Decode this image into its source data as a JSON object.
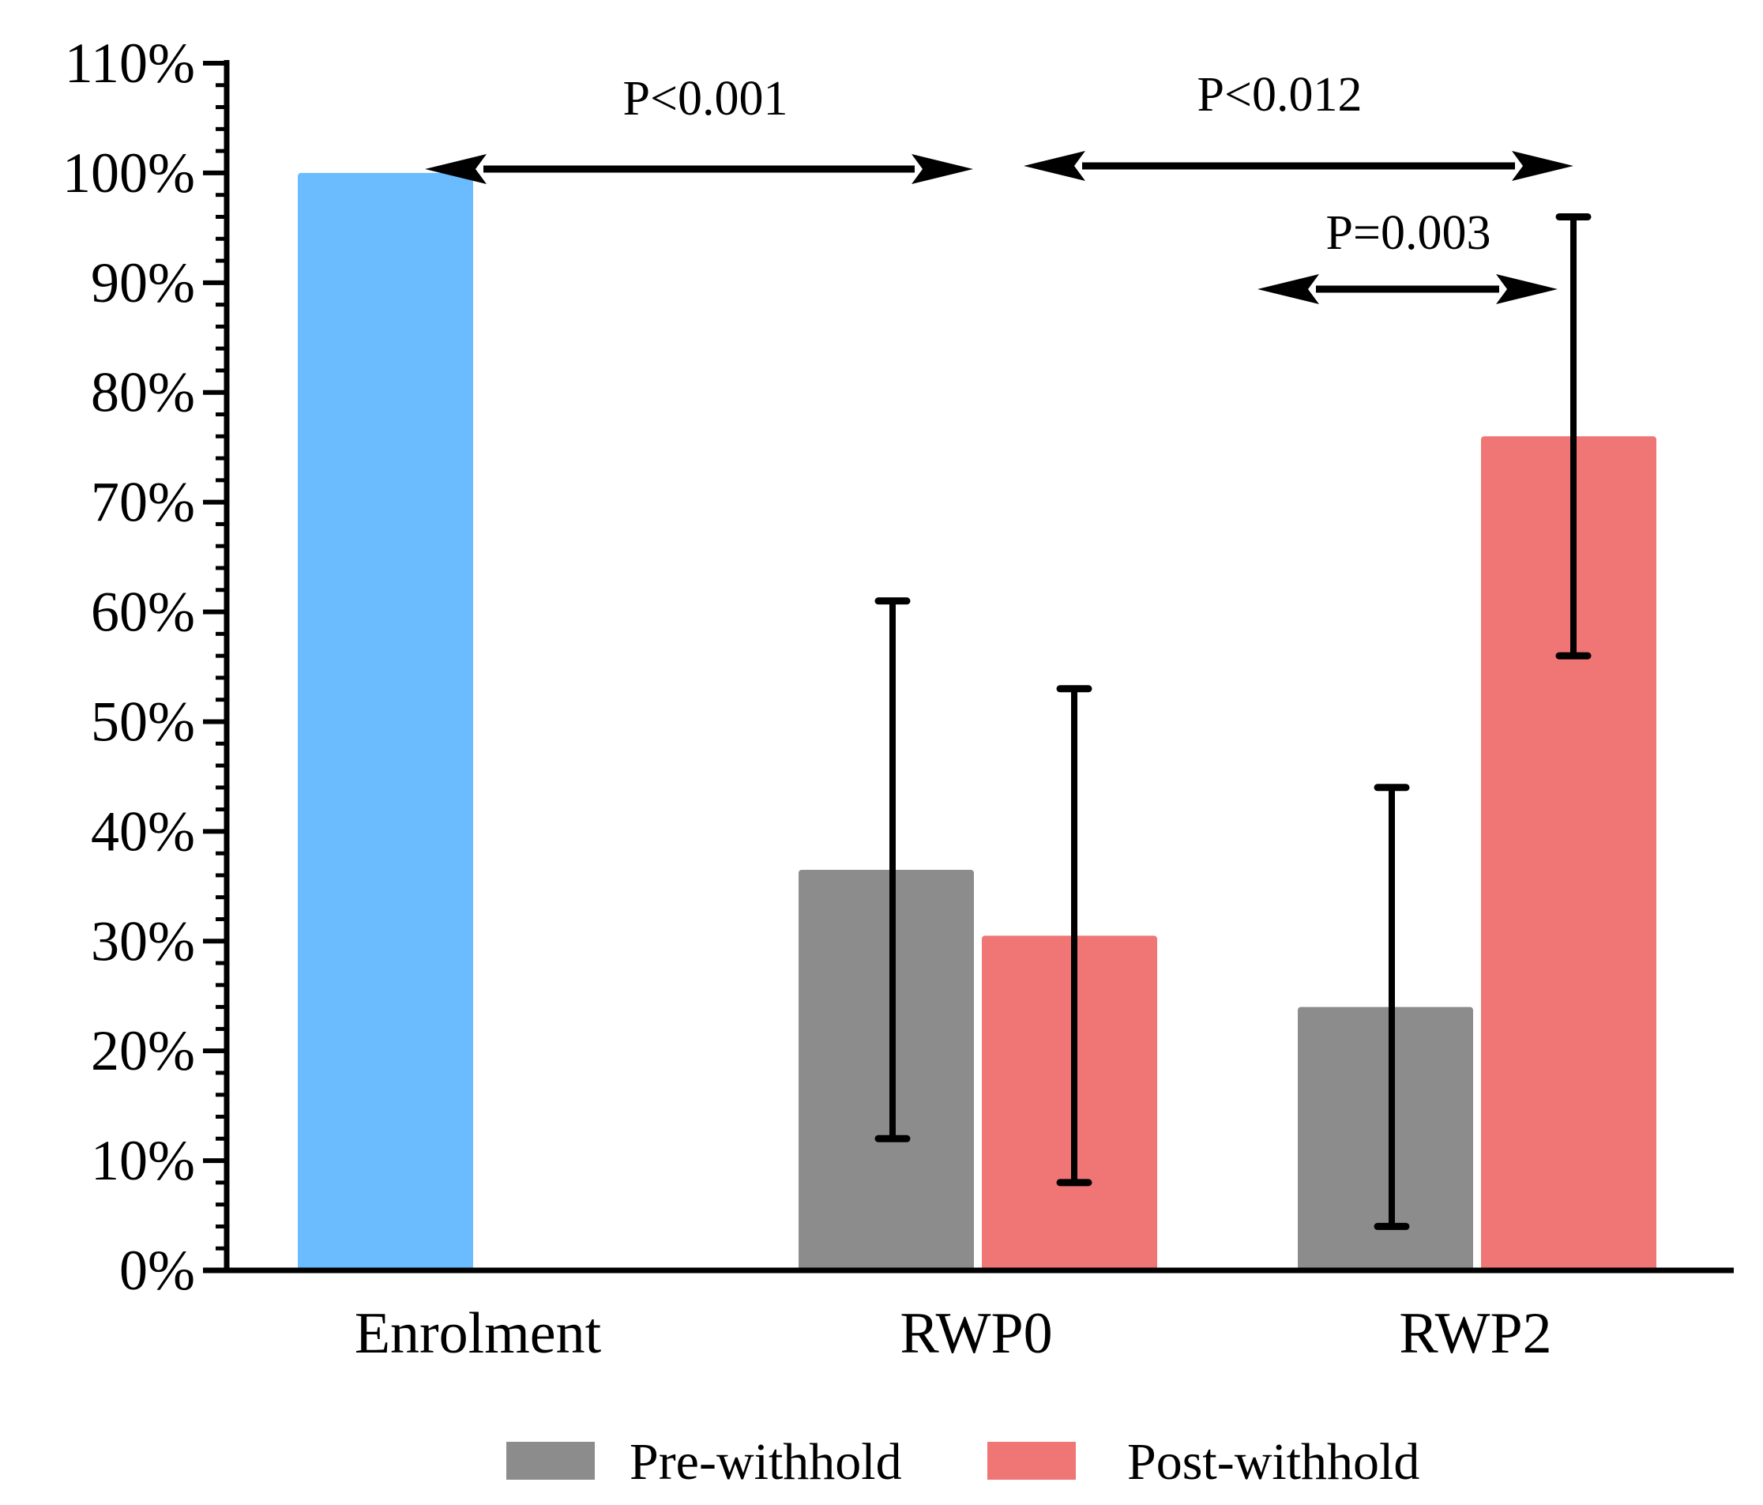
{
  "chart_data": {
    "type": "bar",
    "categories": [
      "Enrolment",
      "RWP0",
      "RWP2"
    ],
    "ylim": [
      0,
      110
    ],
    "y_unit": "%",
    "y_ticks": [
      "0%",
      "10%",
      "20%",
      "30%",
      "40%",
      "50%",
      "60%",
      "70%",
      "80%",
      "90%",
      "100%",
      "110%"
    ],
    "grid": false,
    "legend_position": "bottom",
    "bars": [
      {
        "category": "Enrolment",
        "series": "",
        "value": 100,
        "color": "#6abcff",
        "error": null
      },
      {
        "category": "RWP0",
        "series": "Pre-withhold",
        "value": 36.5,
        "color": "#8c8c8c",
        "error": [
          12,
          61
        ]
      },
      {
        "category": "RWP0",
        "series": "Post-withhold",
        "value": 30.5,
        "color": "#f07575",
        "error": [
          8,
          53
        ]
      },
      {
        "category": "RWP2",
        "series": "Pre-withhold",
        "value": 24,
        "color": "#8c8c8c",
        "error": [
          4,
          44
        ]
      },
      {
        "category": "RWP2",
        "series": "Post-withhold",
        "value": 76,
        "color": "#f07575",
        "error": [
          56,
          96
        ]
      }
    ],
    "legend": [
      {
        "name": "Pre-withhold",
        "color": "#8c8c8c"
      },
      {
        "name": "Post-withhold",
        "color": "#f07575"
      }
    ],
    "annotations": [
      {
        "text": "P<0.001",
        "from": "Enrolment",
        "to": "RWP0",
        "level": 100
      },
      {
        "text": "P<0.012",
        "from": "RWP0",
        "to": "RWP2",
        "level": 100
      },
      {
        "text": "P=0.003",
        "from": "RWP2 Pre-withhold",
        "to": "RWP2 Post-withhold",
        "level": 89
      }
    ]
  }
}
